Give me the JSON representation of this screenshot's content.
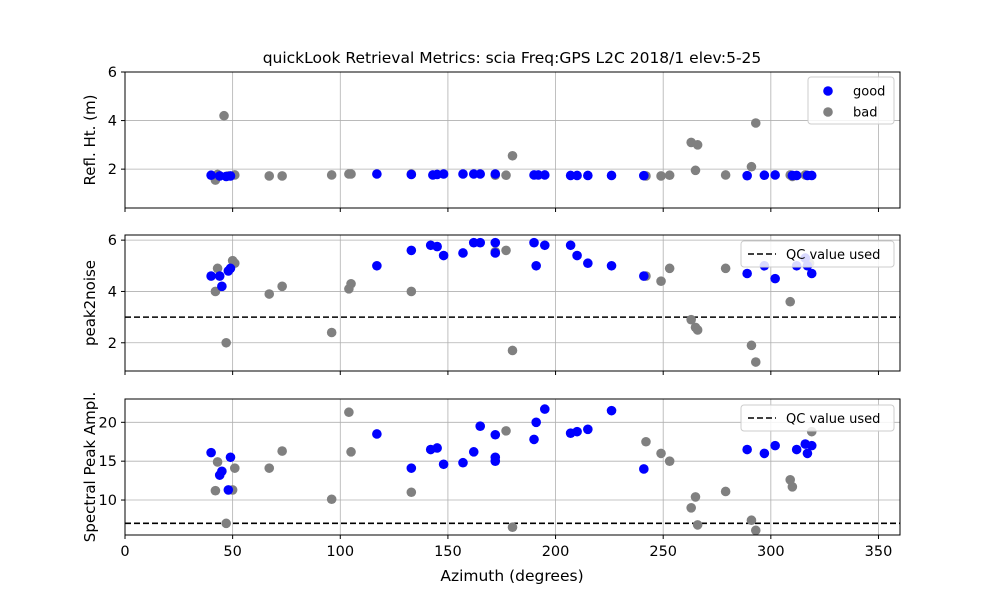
{
  "colors": {
    "good": "#0000ff",
    "bad": "#808080",
    "grid": "#b0b0b0",
    "qc_line": "#000000"
  },
  "chart_data": {
    "title": "quickLook Retrieval Metrics: scia Freq:GPS L2C 2018/1  elev:5-25",
    "xlabel": "Azimuth (degrees)",
    "xlim": [
      0,
      360
    ],
    "xticks": [
      0,
      50,
      100,
      150,
      200,
      250,
      300,
      350
    ],
    "grid": true,
    "panels": [
      {
        "type": "scatter",
        "ylabel": "Refl. Ht. (m)",
        "ylim": [
          0.4,
          6
        ],
        "yticks": [
          2,
          4,
          6
        ],
        "legend": {
          "position": "top-right",
          "entries": [
            "good",
            "bad"
          ]
        },
        "series": [
          {
            "name": "good",
            "x": [
              40,
              44,
              47,
              49,
              117,
              133,
              143,
              145,
              148,
              157,
              162,
              165,
              172,
              190,
              192,
              195,
              207,
              210,
              215,
              226,
              241,
              289,
              297,
              302,
              310,
              312,
              317,
              319
            ],
            "y": [
              1.75,
              1.72,
              1.7,
              1.72,
              1.8,
              1.78,
              1.76,
              1.78,
              1.8,
              1.8,
              1.8,
              1.8,
              1.8,
              1.76,
              1.76,
              1.76,
              1.74,
              1.74,
              1.74,
              1.74,
              1.73,
              1.73,
              1.75,
              1.76,
              1.74,
              1.74,
              1.74,
              1.74
            ]
          },
          {
            "name": "bad",
            "x": [
              42,
              43,
              46,
              48,
              51,
              67,
              73,
              96,
              104,
              105,
              133,
              172,
              177,
              180,
              242,
              249,
              253,
              263,
              265,
              266,
              279,
              291,
              293,
              309,
              310,
              316
            ],
            "y": [
              1.55,
              1.78,
              4.2,
              1.72,
              1.76,
              1.72,
              1.72,
              1.76,
              1.8,
              1.8,
              1.8,
              1.75,
              1.75,
              2.55,
              1.72,
              1.72,
              1.75,
              3.1,
              1.95,
              3.0,
              1.76,
              2.1,
              3.9,
              1.76,
              1.7,
              1.76
            ]
          }
        ]
      },
      {
        "type": "scatter",
        "ylabel": "peak2noise",
        "ylim": [
          0.9,
          6.2
        ],
        "yticks": [
          2,
          4,
          6
        ],
        "legend": {
          "position": "top-right",
          "entries": [
            "QC value used"
          ]
        },
        "qc_value": 3.0,
        "series": [
          {
            "name": "good",
            "x": [
              40,
              44,
              45,
              48,
              49,
              117,
              133,
              142,
              145,
              148,
              157,
              162,
              165,
              172,
              172,
              190,
              191,
              195,
              207,
              210,
              215,
              226,
              241,
              289,
              297,
              302,
              312,
              316,
              317,
              319
            ],
            "y": [
              4.6,
              4.6,
              4.2,
              4.8,
              4.9,
              5.0,
              5.6,
              5.8,
              5.75,
              5.4,
              5.5,
              5.9,
              5.9,
              5.9,
              5.5,
              5.9,
              5.0,
              5.8,
              5.8,
              5.4,
              5.1,
              5.0,
              4.6,
              4.7,
              5.0,
              4.5,
              5.0,
              5.3,
              5.0,
              4.7
            ]
          },
          {
            "name": "bad",
            "x": [
              42,
              43,
              47,
              50,
              51,
              67,
              73,
              96,
              104,
              105,
              133,
              172,
              177,
              180,
              242,
              249,
              253,
              263,
              265,
              266,
              279,
              291,
              293,
              309,
              316,
              318
            ],
            "y": [
              4.0,
              4.9,
              2.0,
              5.2,
              5.1,
              3.9,
              4.2,
              2.4,
              4.1,
              4.3,
              4.0,
              5.55,
              5.6,
              1.7,
              4.6,
              4.4,
              4.9,
              2.9,
              2.6,
              2.5,
              4.9,
              1.9,
              1.25,
              3.6,
              5.3,
              5.1
            ]
          }
        ]
      },
      {
        "type": "scatter",
        "ylabel": "Spectral Peak Ampl.",
        "ylim": [
          5.5,
          23
        ],
        "yticks": [
          10,
          15,
          20
        ],
        "legend": {
          "position": "top-right",
          "entries": [
            "QC value used"
          ]
        },
        "qc_value": 7.0,
        "series": [
          {
            "name": "good",
            "x": [
              40,
              44,
              45,
              48,
              49,
              117,
              133,
              142,
              145,
              148,
              157,
              162,
              165,
              172,
              172,
              172,
              190,
              191,
              195,
              207,
              210,
              215,
              226,
              241,
              289,
              297,
              302,
              312,
              316,
              317,
              319
            ],
            "y": [
              16.1,
              13.2,
              13.7,
              11.3,
              15.5,
              18.5,
              14.1,
              16.5,
              16.7,
              14.6,
              14.8,
              16.2,
              19.5,
              18.4,
              15.5,
              15.0,
              17.8,
              20.0,
              21.7,
              18.6,
              18.8,
              19.1,
              21.5,
              14.0,
              16.5,
              16.0,
              17.0,
              16.5,
              17.2,
              16.0,
              17.0
            ]
          },
          {
            "name": "bad",
            "x": [
              42,
              43,
              47,
              50,
              51,
              67,
              73,
              96,
              104,
              105,
              133,
              177,
              180,
              242,
              249,
              253,
              263,
              265,
              266,
              279,
              291,
              293,
              309,
              310,
              319
            ],
            "y": [
              11.2,
              14.9,
              7.0,
              11.3,
              14.1,
              14.1,
              16.3,
              10.1,
              21.3,
              16.2,
              11.0,
              18.9,
              6.5,
              17.5,
              16.0,
              15.0,
              9.0,
              10.4,
              6.8,
              11.1,
              7.4,
              6.1,
              12.6,
              11.7,
              18.8
            ]
          }
        ]
      }
    ]
  }
}
